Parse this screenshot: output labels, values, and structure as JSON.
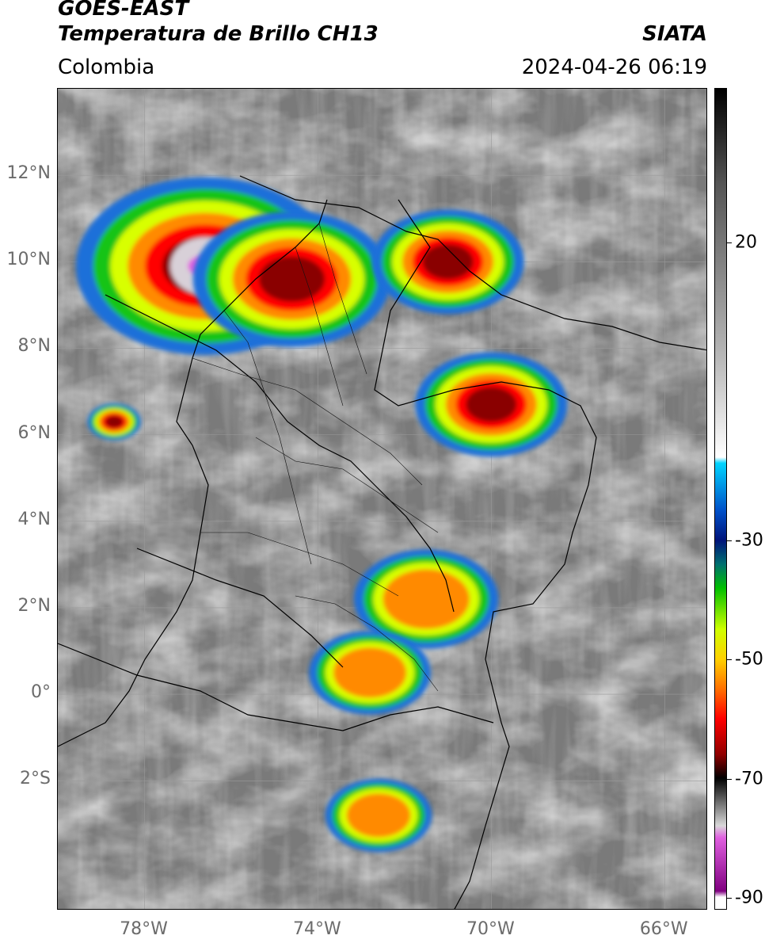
{
  "header": {
    "satellite": "GOES-EAST",
    "product": "Temperatura de Brillo CH13",
    "organization": "SIATA",
    "region": "Colombia",
    "datetime": "2024-04-26 06:19"
  },
  "map": {
    "extent": {
      "lon_min": -80,
      "lon_max": -65,
      "lat_min": -5,
      "lat_max": 14
    },
    "lat_ticks": [
      "12°N",
      "10°N",
      "8°N",
      "6°N",
      "4°N",
      "2°N",
      "0°",
      "2°S"
    ],
    "lat_values": [
      12,
      10,
      8,
      6,
      4,
      2,
      0,
      -2
    ],
    "lon_ticks": [
      "78°W",
      "74°W",
      "70°W",
      "66°W"
    ],
    "lon_values": [
      -78,
      -74,
      -70,
      -66
    ],
    "storm_cells": [
      {
        "lon": -76.6,
        "lat": 9.9,
        "peak": "-90"
      },
      {
        "lon": -74.6,
        "lat": 9.6,
        "peak": "-70"
      },
      {
        "lon": -71.0,
        "lat": 10.0,
        "peak": "-70"
      },
      {
        "lon": -70.0,
        "lat": 6.7,
        "peak": "-65"
      },
      {
        "lon": -71.5,
        "lat": 2.2,
        "peak": "-55"
      },
      {
        "lon": -72.8,
        "lat": 0.5,
        "peak": "-55"
      },
      {
        "lon": -72.6,
        "lat": -2.8,
        "peak": "-55"
      },
      {
        "lon": -78.7,
        "lat": 6.3,
        "peak": "-70"
      }
    ]
  },
  "colorbar": {
    "labels": [
      "20",
      "-30",
      "-50",
      "-70",
      "-90"
    ],
    "values": [
      20,
      -30,
      -50,
      -70,
      -90
    ],
    "vmin": -92,
    "vmax": 46,
    "stops": [
      {
        "v": 46,
        "c": "#000000"
      },
      {
        "v": 30,
        "c": "#555555"
      },
      {
        "v": 0,
        "c": "#bbbbbb"
      },
      {
        "v": -16,
        "c": "#ffffff"
      },
      {
        "v": -17,
        "c": "#00d4ff"
      },
      {
        "v": -25,
        "c": "#0050c8"
      },
      {
        "v": -30,
        "c": "#00147a"
      },
      {
        "v": -34,
        "c": "#007070"
      },
      {
        "v": -38,
        "c": "#00c000"
      },
      {
        "v": -45,
        "c": "#d0ff00"
      },
      {
        "v": -50,
        "c": "#ffd000"
      },
      {
        "v": -55,
        "c": "#ff7000"
      },
      {
        "v": -60,
        "c": "#ff0000"
      },
      {
        "v": -66,
        "c": "#900000"
      },
      {
        "v": -70,
        "c": "#000000"
      },
      {
        "v": -78,
        "c": "#d8d8d8"
      },
      {
        "v": -80,
        "c": "#e060e0"
      },
      {
        "v": -89,
        "c": "#800080"
      },
      {
        "v": -90,
        "c": "#ffffff"
      }
    ]
  }
}
